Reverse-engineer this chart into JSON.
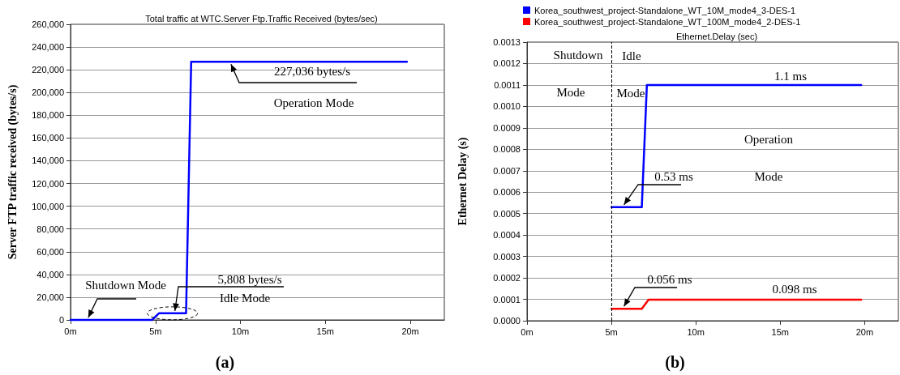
{
  "chart_data": [
    {
      "type": "line",
      "title": "Total traffic at WTC.Server Ftp.Traffic Received (bytes/sec)",
      "ylabel": "Server FTP traffic received (bytes/s)",
      "xlim": [
        0,
        22
      ],
      "xticks": [
        {
          "value": 0,
          "label": "0m"
        },
        {
          "value": 5,
          "label": "5m"
        },
        {
          "value": 10,
          "label": "10m"
        },
        {
          "value": 15,
          "label": "15m"
        },
        {
          "value": 20,
          "label": "20m"
        }
      ],
      "ylim": [
        0,
        260000
      ],
      "yticks": [
        0,
        {
          "value": 20000,
          "label": "20,000"
        },
        {
          "value": 40000,
          "label": "40,000"
        },
        {
          "value": 60000,
          "label": "60,000"
        },
        {
          "value": 80000,
          "label": "80,000"
        },
        {
          "value": 100000,
          "label": "100,000"
        },
        {
          "value": 120000,
          "label": "120,000"
        },
        {
          "value": 140000,
          "label": "140,000"
        },
        {
          "value": 160000,
          "label": "160,000"
        },
        {
          "value": 180000,
          "label": "180,000"
        },
        {
          "value": 200000,
          "label": "200,000"
        },
        {
          "value": 220000,
          "label": "220,000"
        },
        {
          "value": 240000,
          "label": "240,000"
        },
        {
          "value": 260000,
          "label": "260,000"
        }
      ],
      "series": [
        {
          "color": "#0000ff",
          "x": [
            0,
            4.8,
            5.2,
            6.8,
            7.1,
            19.8
          ],
          "values": [
            0,
            0,
            5808,
            5808,
            227036,
            227036
          ]
        }
      ],
      "annotations": [
        {
          "text": "227,036 bytes/s",
          "x": 9.3,
          "y": 227036
        },
        "Operation Mode",
        {
          "text": "5,808 bytes/s",
          "x": 6,
          "y": 5808
        },
        "Idle Mode",
        {
          "text": "Shutdown Mode",
          "x": 0.9,
          "y": 0
        },
        "(a)"
      ],
      "grid": "y",
      "legend": false,
      "marker": "none",
      "line_style": "solid"
    },
    {
      "type": "line",
      "title": "Ethernet.Delay (sec)",
      "ylabel": "Ethernet Delay (s)",
      "xlim": [
        0,
        22
      ],
      "xticks": [
        {
          "value": 0,
          "label": "0m"
        },
        {
          "value": 5,
          "label": "5m"
        },
        {
          "value": 10,
          "label": "10m"
        },
        {
          "value": 15,
          "label": "15m"
        },
        {
          "value": 20,
          "label": "20m"
        }
      ],
      "ylim": [
        0,
        0.0013
      ],
      "yticks": [
        {
          "value": 0,
          "label": "0.0000"
        },
        0.0001,
        0.0002,
        0.0003,
        0.0004,
        0.0005,
        0.0006,
        0.0007,
        0.0008,
        0.0009,
        {
          "value": 0.001,
          "label": "0.0010"
        },
        0.0011,
        0.0012,
        0.0013
      ],
      "series": [
        {
          "name": "Korea_southwest_project-Standalone_WT_10M_mode4_3-DES-1",
          "color": "#0000ff",
          "x": [
            5,
            6.8,
            7.1,
            19.8
          ],
          "values": [
            0.00053,
            0.00053,
            0.0011,
            0.0011
          ]
        },
        {
          "name": "Korea_southwest_project-Standalone_WT_100M_mode4_2-DES-1",
          "color": "#ff0000",
          "x": [
            5,
            6.8,
            7.2,
            19.8
          ],
          "values": [
            5.6e-05,
            5.6e-05,
            9.8e-05,
            9.8e-05
          ]
        }
      ],
      "ref_lines": [
        {
          "axis": "x",
          "value": 5,
          "color": "#000000",
          "line_style": "dashed"
        }
      ],
      "annotations": [
        "Shutdown",
        "Mode",
        "Idle",
        "Mode",
        "1.1 ms",
        "Operation",
        "Mode",
        {
          "text": "0.53 ms",
          "x": 5.6,
          "y": 0.00053
        },
        {
          "text": "0.056 ms",
          "x": 5.6,
          "y": 5.6e-05
        },
        "0.098 ms",
        "(b)"
      ],
      "grid": "y",
      "legend": "top",
      "marker": "none",
      "line_style": "solid"
    }
  ]
}
